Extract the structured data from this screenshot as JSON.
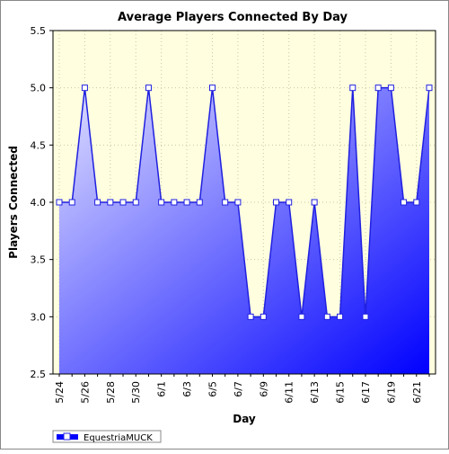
{
  "chart_data": {
    "type": "area",
    "title": "Average Players Connected By Day",
    "xlabel": "Day",
    "ylabel": "Players Connected",
    "ylim": [
      2.5,
      5.5
    ],
    "yticks": [
      "2.5",
      "3.0",
      "3.5",
      "4.0",
      "4.5",
      "5.0",
      "5.5"
    ],
    "x": [
      "5/24",
      "5/25",
      "5/26",
      "5/27",
      "5/28",
      "5/29",
      "5/30",
      "5/31",
      "6/1",
      "6/2",
      "6/3",
      "6/4",
      "6/5",
      "6/6",
      "6/7",
      "6/8",
      "6/9",
      "6/10",
      "6/11",
      "6/12",
      "6/13",
      "6/14",
      "6/15",
      "6/16",
      "6/17",
      "6/18",
      "6/19",
      "6/20",
      "6/21",
      "6/22"
    ],
    "xtick_labels": [
      "5/24",
      "5/26",
      "5/28",
      "5/30",
      "6/1",
      "6/3",
      "6/5",
      "6/7",
      "6/9",
      "6/11",
      "6/13",
      "6/15",
      "6/17",
      "6/19",
      "6/21"
    ],
    "series": [
      {
        "name": "EquestriaMUCK",
        "values": [
          4.0,
          4.0,
          5.0,
          4.0,
          4.0,
          4.0,
          4.0,
          5.0,
          4.0,
          4.0,
          4.0,
          4.0,
          5.0,
          4.0,
          4.0,
          3.0,
          3.0,
          4.0,
          4.0,
          3.0,
          4.0,
          3.0,
          3.0,
          5.0,
          3.0,
          5.0,
          5.0,
          4.0,
          4.0,
          5.0
        ]
      }
    ],
    "grid": true,
    "legend": "bottom-left",
    "colors": {
      "line": "#2020e0",
      "fill_light": "#e0e0ff",
      "fill_dark": "#0000ff",
      "plot_background": "#ffffe0"
    }
  }
}
